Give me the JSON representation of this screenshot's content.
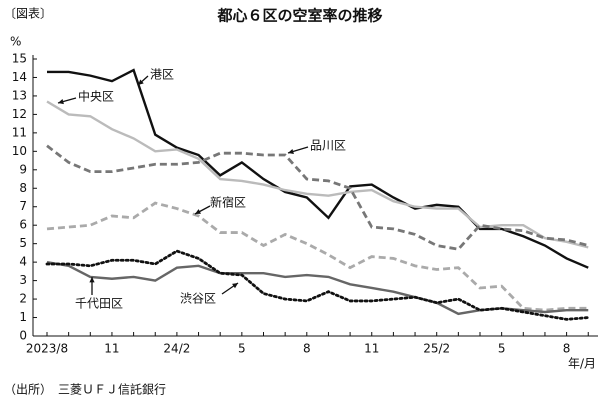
{
  "chart_data": {
    "type": "line",
    "tag": "〔図表〕",
    "title": "都心６区の空室率の推移",
    "y_unit": "%",
    "x_unit": "年/月",
    "source": "（出所）　三菱ＵＦＪ信託銀行",
    "categories": [
      "2023/8",
      null,
      null,
      "11",
      null,
      null,
      "24/2",
      null,
      null,
      "5",
      null,
      null,
      "8",
      null,
      null,
      "11",
      null,
      null,
      "25/2",
      null,
      null,
      "5",
      null,
      null,
      "8",
      null
    ],
    "ylim": [
      0,
      15
    ],
    "yticks": [
      0,
      1,
      2,
      3,
      4,
      5,
      6,
      7,
      8,
      9,
      10,
      11,
      12,
      13,
      14,
      15
    ],
    "series": [
      {
        "name": "港区",
        "color": "#111111",
        "dash": "solid",
        "values": [
          14.3,
          14.3,
          14.1,
          13.8,
          14.4,
          10.9,
          10.2,
          9.8,
          8.7,
          9.4,
          8.5,
          7.8,
          7.5,
          6.4,
          8.1,
          8.2,
          7.5,
          6.9,
          7.1,
          7.0,
          5.8,
          5.8,
          5.4,
          4.9,
          4.2,
          3.7
        ]
      },
      {
        "name": "中央区",
        "color": "#bbbbbb",
        "dash": "solid",
        "values": [
          12.7,
          12.0,
          11.9,
          11.2,
          10.7,
          10.0,
          10.1,
          9.6,
          8.5,
          8.4,
          8.2,
          7.9,
          7.7,
          7.6,
          7.8,
          7.9,
          7.3,
          7.0,
          6.9,
          6.9,
          5.9,
          6.0,
          6.0,
          5.3,
          5.1,
          4.8
        ]
      },
      {
        "name": "品川区",
        "color": "#777777",
        "dash": "dashed",
        "values": [
          10.3,
          9.4,
          8.9,
          8.9,
          9.1,
          9.3,
          9.3,
          9.4,
          9.9,
          9.9,
          9.8,
          9.8,
          8.5,
          8.4,
          8.0,
          5.9,
          5.8,
          5.5,
          4.9,
          4.7,
          6.0,
          5.8,
          5.7,
          5.3,
          5.2,
          4.9
        ]
      },
      {
        "name": "新宿区",
        "color": "#aaaaaa",
        "dash": "dashed",
        "values": [
          5.8,
          5.9,
          6.0,
          6.5,
          6.4,
          7.2,
          6.9,
          6.5,
          5.6,
          5.6,
          4.9,
          5.5,
          5.0,
          4.4,
          3.7,
          4.3,
          4.2,
          3.8,
          3.6,
          3.7,
          2.6,
          2.7,
          1.5,
          1.4,
          1.5,
          1.5
        ]
      },
      {
        "name": "千代田区",
        "color": "#666666",
        "dash": "solid",
        "values": [
          4.0,
          3.8,
          3.2,
          3.1,
          3.2,
          3.0,
          3.7,
          3.8,
          3.4,
          3.4,
          3.4,
          3.2,
          3.3,
          3.2,
          2.8,
          2.6,
          2.4,
          2.1,
          1.8,
          1.2,
          1.4,
          1.5,
          1.4,
          1.3,
          1.4,
          1.4
        ]
      },
      {
        "name": "渋谷区",
        "color": "#111111",
        "dash": "dotted",
        "values": [
          3.9,
          3.9,
          3.8,
          4.1,
          4.1,
          3.9,
          4.6,
          4.2,
          3.4,
          3.3,
          2.3,
          2.0,
          1.9,
          2.4,
          1.9,
          1.9,
          2.0,
          2.1,
          1.8,
          2.0,
          1.4,
          1.5,
          1.3,
          1.1,
          0.9,
          1.0
        ]
      }
    ]
  }
}
